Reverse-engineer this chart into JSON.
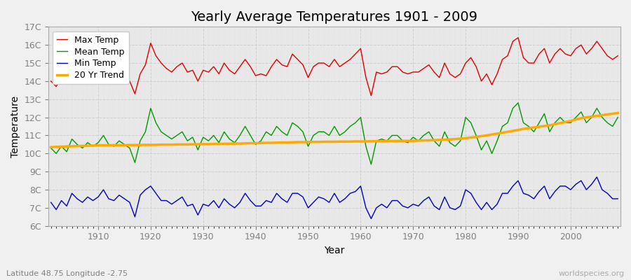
{
  "title": "Yearly Average Temperatures 1901 - 2009",
  "xlabel": "Year",
  "ylabel": "Temperature",
  "lat_lon_label": "Latitude 48.75 Longitude -2.75",
  "watermark": "worldspecies.org",
  "years": [
    1901,
    1902,
    1903,
    1904,
    1905,
    1906,
    1907,
    1908,
    1909,
    1910,
    1911,
    1912,
    1913,
    1914,
    1915,
    1916,
    1917,
    1918,
    1919,
    1920,
    1921,
    1922,
    1923,
    1924,
    1925,
    1926,
    1927,
    1928,
    1929,
    1930,
    1931,
    1932,
    1933,
    1934,
    1935,
    1936,
    1937,
    1938,
    1939,
    1940,
    1941,
    1942,
    1943,
    1944,
    1945,
    1946,
    1947,
    1948,
    1949,
    1950,
    1951,
    1952,
    1953,
    1954,
    1955,
    1956,
    1957,
    1958,
    1959,
    1960,
    1961,
    1962,
    1963,
    1964,
    1965,
    1966,
    1967,
    1968,
    1969,
    1970,
    1971,
    1972,
    1973,
    1974,
    1975,
    1976,
    1977,
    1978,
    1979,
    1980,
    1981,
    1982,
    1983,
    1984,
    1985,
    1986,
    1987,
    1988,
    1989,
    1990,
    1991,
    1992,
    1993,
    1994,
    1995,
    1996,
    1997,
    1998,
    1999,
    2000,
    2001,
    2002,
    2003,
    2004,
    2005,
    2006,
    2007,
    2008,
    2009
  ],
  "max_temp": [
    14.0,
    13.7,
    14.2,
    13.9,
    14.6,
    14.3,
    14.1,
    14.5,
    14.2,
    14.4,
    14.8,
    14.3,
    14.2,
    14.5,
    14.2,
    14.0,
    13.3,
    14.4,
    14.9,
    16.1,
    15.4,
    15.0,
    14.7,
    14.5,
    14.8,
    15.0,
    14.5,
    14.6,
    14.0,
    14.6,
    14.5,
    14.8,
    14.4,
    15.0,
    14.6,
    14.4,
    14.8,
    15.2,
    14.8,
    14.3,
    14.4,
    14.3,
    14.8,
    15.2,
    14.9,
    14.8,
    15.5,
    15.2,
    14.9,
    14.2,
    14.8,
    15.0,
    15.0,
    14.8,
    15.2,
    14.8,
    15.0,
    15.2,
    15.5,
    15.8,
    14.2,
    13.2,
    14.5,
    14.4,
    14.5,
    14.8,
    14.8,
    14.5,
    14.4,
    14.5,
    14.5,
    14.7,
    14.9,
    14.5,
    14.2,
    15.0,
    14.4,
    14.2,
    14.4,
    15.0,
    15.3,
    14.8,
    14.0,
    14.4,
    13.8,
    14.4,
    15.2,
    15.4,
    16.2,
    16.4,
    15.3,
    15.0,
    15.0,
    15.5,
    15.8,
    15.0,
    15.5,
    15.8,
    15.5,
    15.4,
    15.8,
    16.0,
    15.5,
    15.8,
    16.2,
    15.8,
    15.4,
    15.2,
    15.4
  ],
  "mean_temp": [
    10.3,
    10.0,
    10.4,
    10.1,
    10.8,
    10.5,
    10.3,
    10.6,
    10.4,
    10.6,
    11.0,
    10.5,
    10.4,
    10.7,
    10.5,
    10.3,
    9.5,
    10.7,
    11.2,
    12.5,
    11.7,
    11.2,
    11.0,
    10.8,
    11.0,
    11.2,
    10.7,
    10.9,
    10.2,
    10.9,
    10.7,
    11.0,
    10.6,
    11.2,
    10.8,
    10.6,
    11.0,
    11.5,
    11.0,
    10.5,
    10.7,
    11.2,
    11.0,
    11.5,
    11.2,
    11.0,
    11.7,
    11.5,
    11.2,
    10.4,
    11.0,
    11.2,
    11.2,
    11.0,
    11.5,
    11.0,
    11.2,
    11.5,
    11.7,
    12.0,
    10.4,
    9.4,
    10.7,
    10.8,
    10.7,
    11.0,
    11.0,
    10.7,
    10.6,
    10.9,
    10.7,
    11.0,
    11.2,
    10.7,
    10.4,
    11.2,
    10.6,
    10.4,
    10.7,
    12.0,
    11.7,
    11.0,
    10.2,
    10.7,
    10.0,
    10.7,
    11.5,
    11.7,
    12.5,
    12.8,
    11.7,
    11.5,
    11.2,
    11.7,
    12.2,
    11.2,
    11.7,
    12.0,
    11.7,
    11.7,
    12.0,
    12.3,
    11.7,
    12.0,
    12.5,
    12.0,
    11.7,
    11.5,
    12.0
  ],
  "min_temp": [
    7.3,
    6.9,
    7.4,
    7.1,
    7.8,
    7.5,
    7.3,
    7.6,
    7.4,
    7.6,
    8.0,
    7.5,
    7.4,
    7.7,
    7.5,
    7.3,
    6.5,
    7.7,
    8.0,
    8.2,
    7.8,
    7.4,
    7.4,
    7.2,
    7.4,
    7.6,
    7.1,
    7.2,
    6.6,
    7.2,
    7.1,
    7.4,
    7.0,
    7.5,
    7.2,
    7.0,
    7.3,
    7.8,
    7.4,
    7.1,
    7.1,
    7.4,
    7.3,
    7.8,
    7.5,
    7.3,
    7.8,
    7.8,
    7.6,
    7.0,
    7.3,
    7.6,
    7.5,
    7.3,
    7.8,
    7.3,
    7.5,
    7.8,
    7.9,
    8.2,
    7.0,
    6.4,
    7.0,
    7.2,
    7.0,
    7.4,
    7.4,
    7.1,
    7.0,
    7.2,
    7.1,
    7.4,
    7.6,
    7.1,
    6.9,
    7.6,
    7.0,
    6.9,
    7.1,
    8.0,
    7.8,
    7.3,
    6.9,
    7.3,
    6.9,
    7.2,
    7.8,
    7.8,
    8.2,
    8.5,
    7.8,
    7.7,
    7.5,
    7.9,
    8.2,
    7.5,
    7.9,
    8.2,
    8.2,
    8.0,
    8.3,
    8.5,
    8.0,
    8.3,
    8.7,
    8.0,
    7.8,
    7.5,
    7.5
  ],
  "trend": [
    10.35,
    10.37,
    10.38,
    10.39,
    10.4,
    10.41,
    10.42,
    10.43,
    10.44,
    10.45,
    10.46,
    10.46,
    10.46,
    10.46,
    10.46,
    10.47,
    10.47,
    10.47,
    10.48,
    10.48,
    10.48,
    10.49,
    10.49,
    10.49,
    10.5,
    10.5,
    10.5,
    10.51,
    10.51,
    10.52,
    10.52,
    10.53,
    10.53,
    10.54,
    10.54,
    10.55,
    10.55,
    10.56,
    10.57,
    10.57,
    10.58,
    10.59,
    10.59,
    10.6,
    10.61,
    10.61,
    10.62,
    10.63,
    10.63,
    10.64,
    10.64,
    10.64,
    10.65,
    10.65,
    10.65,
    10.66,
    10.66,
    10.66,
    10.67,
    10.67,
    10.67,
    10.68,
    10.68,
    10.68,
    10.69,
    10.69,
    10.69,
    10.7,
    10.7,
    10.7,
    10.71,
    10.72,
    10.73,
    10.74,
    10.75,
    10.76,
    10.78,
    10.8,
    10.82,
    10.85,
    10.88,
    10.92,
    10.96,
    11.0,
    11.05,
    11.1,
    11.15,
    11.2,
    11.25,
    11.3,
    11.36,
    11.4,
    11.44,
    11.48,
    11.52,
    11.56,
    11.62,
    11.68,
    11.74,
    11.8,
    11.88,
    11.95,
    12.0,
    12.04,
    12.08,
    12.12,
    12.16,
    12.2,
    12.24
  ],
  "ylim": [
    6,
    17
  ],
  "yticks": [
    6,
    7,
    8,
    9,
    10,
    11,
    12,
    13,
    14,
    15,
    16,
    17
  ],
  "ytick_labels": [
    "6C",
    "7C",
    "8C",
    "9C",
    "10C",
    "11C",
    "12C",
    "13C",
    "14C",
    "15C",
    "16C",
    "17C"
  ],
  "xticks": [
    1910,
    1920,
    1930,
    1940,
    1950,
    1960,
    1970,
    1980,
    1990,
    2000
  ],
  "max_color": "#dd0000",
  "mean_color": "#009900",
  "min_color": "#0000bb",
  "trend_color": "#ffaa00",
  "fig_bg_color": "#f0f0f0",
  "plot_bg_color": "#e8e8e8",
  "grid_color": "#cccccc",
  "title_fontsize": 14,
  "axis_label_fontsize": 10,
  "tick_label_fontsize": 9,
  "legend_fontsize": 9,
  "linewidth": 1.0,
  "trend_linewidth": 2.5
}
